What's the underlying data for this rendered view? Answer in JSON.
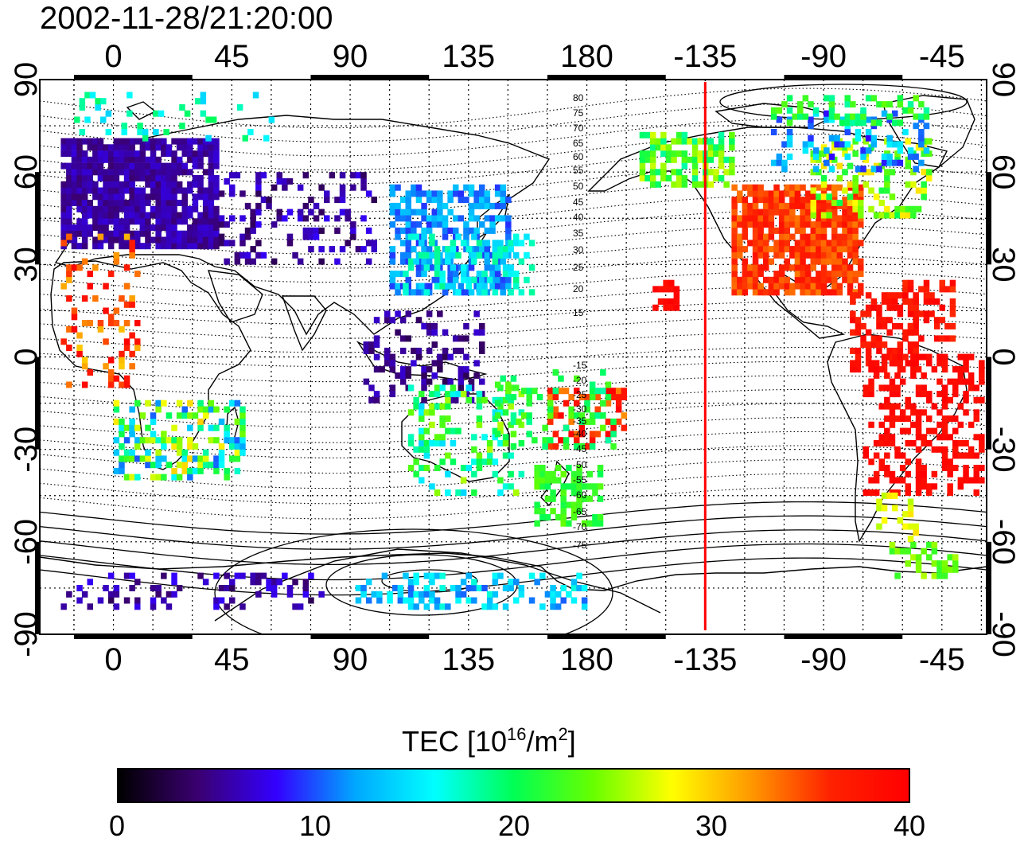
{
  "timestamp": "2002-11-28/21:20:00",
  "map": {
    "top_lon_labels": [
      "0",
      "45",
      "90",
      "135",
      "180",
      "-135",
      "-90",
      "-45"
    ],
    "bottom_lon_labels": [
      "0",
      "45",
      "90",
      "135",
      "180",
      "-135",
      "-90",
      "-45"
    ],
    "lat_labels": [
      "90",
      "60",
      "30",
      "0",
      "-30",
      "-60",
      "-90"
    ],
    "contour_labels_north": [
      "80",
      "75",
      "70",
      "65",
      "60",
      "55",
      "50",
      "45",
      "40",
      "35",
      "30",
      "25",
      "20",
      "15"
    ],
    "contour_labels_south": [
      "-15",
      "-20",
      "-25",
      "-30",
      "-35",
      "-40",
      "-45",
      "-50",
      "-55",
      "-60",
      "-65",
      "-70",
      "-75"
    ],
    "terminator_color": "#ff0000",
    "terminator_longitude": -135
  },
  "colorbar": {
    "title_prefix": "TEC  [10",
    "title_exp1": "16",
    "title_mid": "/m",
    "title_exp2": "2",
    "title_suffix": "]",
    "tick_labels": [
      "0",
      "10",
      "20",
      "30",
      "40"
    ],
    "range": [
      0,
      40
    ],
    "colors": [
      "#000000",
      "#3a0070",
      "#3300ff",
      "#00a8ff",
      "#00ffff",
      "#00ff55",
      "#66ff00",
      "#ffff00",
      "#ff9900",
      "#ff2200",
      "#ff0000"
    ]
  }
}
